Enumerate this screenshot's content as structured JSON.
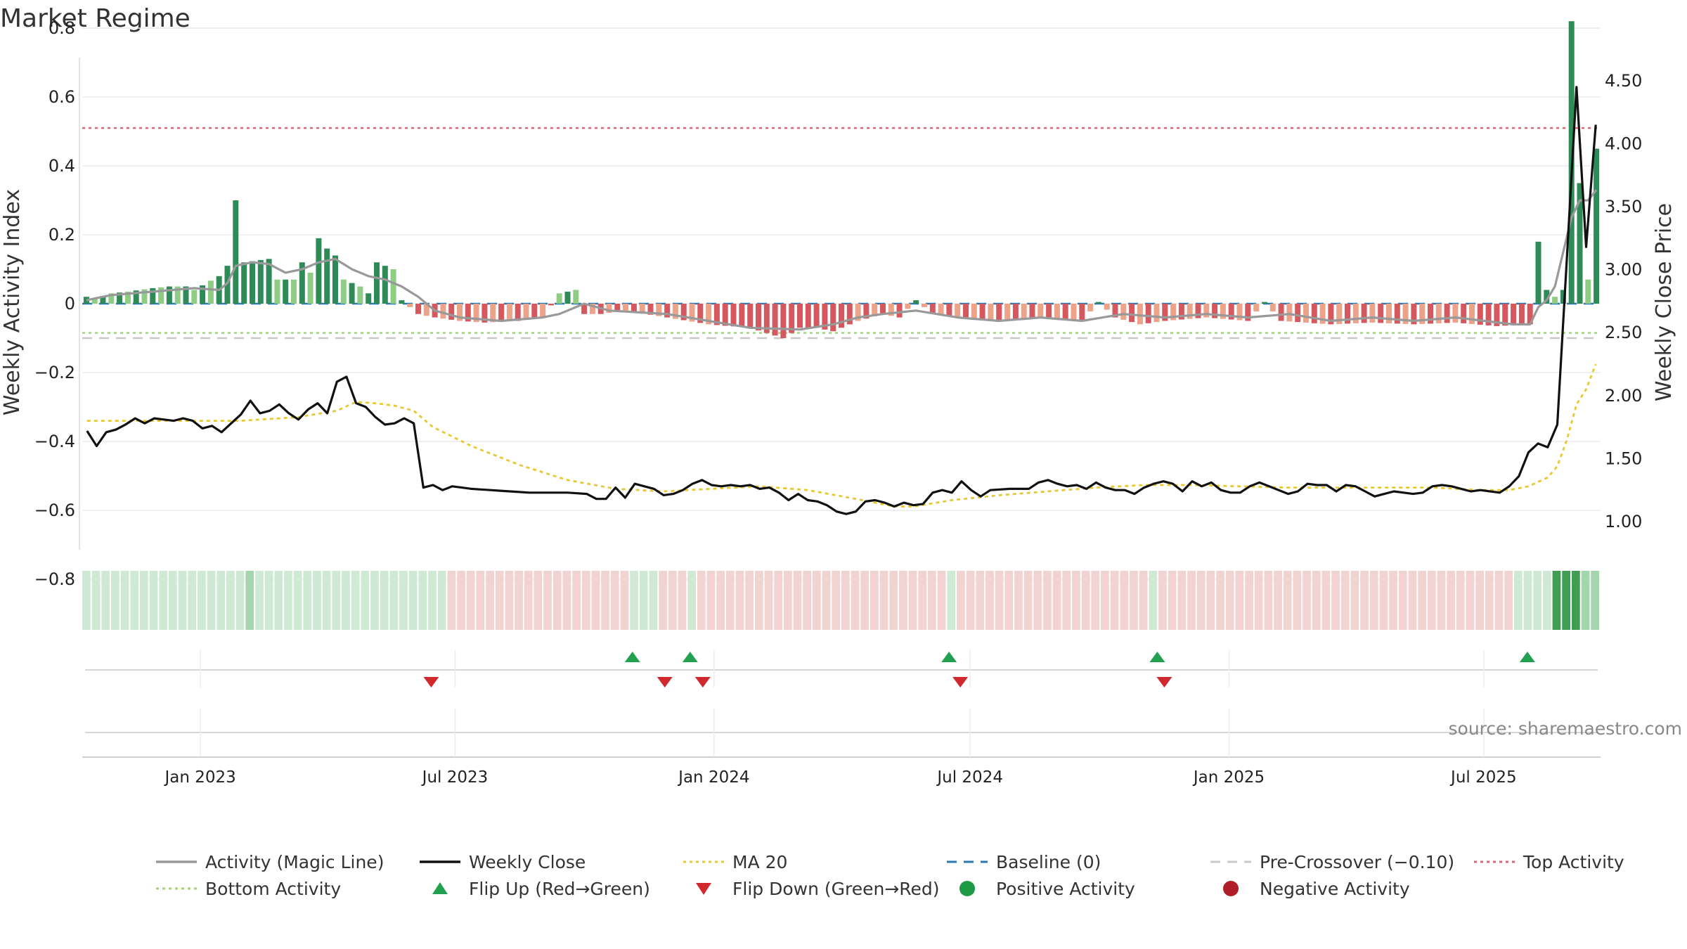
{
  "title": "Market Regime",
  "source": "source: sharemaestro.com",
  "chart_data": {
    "type": "bar",
    "x_start": "2022-10-09",
    "x_end": "2025-09-22",
    "date_ticks": [
      {
        "date": "2023-01-01",
        "label": "Jan 2023"
      },
      {
        "date": "2023-07-01",
        "label": "Jul 2023"
      },
      {
        "date": "2024-01-01",
        "label": "Jan 2024"
      },
      {
        "date": "2024-07-01",
        "label": "Jul 2024"
      },
      {
        "date": "2025-01-01",
        "label": "Jan 2025"
      },
      {
        "date": "2025-07-01",
        "label": "Jul 2025"
      }
    ],
    "left_axis": {
      "label": "Weekly Activity Index",
      "ylim": [
        -0.9,
        0.9
      ],
      "ticks": [
        {
          "v": 0.8,
          "label": "0.8"
        },
        {
          "v": 0.6,
          "label": "0.6"
        },
        {
          "v": 0.4,
          "label": "0.4"
        },
        {
          "v": 0.2,
          "label": "0.2"
        },
        {
          "v": 0,
          "label": "0"
        },
        {
          "v": -0.2,
          "label": "−0.2"
        },
        {
          "v": -0.4,
          "label": "−0.4"
        },
        {
          "v": -0.6,
          "label": "−0.6"
        },
        {
          "v": -0.8,
          "label": "−0.8"
        }
      ]
    },
    "right_axis": {
      "label": "Weekly Close Price",
      "ylim": [
        0.95,
        4.55
      ],
      "ticks": [
        {
          "v": 4.5,
          "label": "4.50"
        },
        {
          "v": 4.0,
          "label": "4.00"
        },
        {
          "v": 3.5,
          "label": "3.50"
        },
        {
          "v": 3.0,
          "label": "3.00"
        },
        {
          "v": 2.5,
          "label": "2.50"
        },
        {
          "v": 2.0,
          "label": "2.00"
        },
        {
          "v": 1.5,
          "label": "1.50"
        },
        {
          "v": 1.0,
          "label": "1.00"
        }
      ]
    },
    "reference_lines": {
      "top_activity": 0.51,
      "bottom_activity": -0.085,
      "pre_crossover": -0.1,
      "baseline": 0
    },
    "activity_anchors": [
      [
        0,
        0.02
      ],
      [
        1,
        0.015
      ],
      [
        3,
        0.03
      ],
      [
        5,
        0.035
      ],
      [
        8,
        0.045
      ],
      [
        10,
        0.05
      ],
      [
        12,
        0.05
      ],
      [
        13,
        0.04
      ],
      [
        16,
        0.08
      ],
      [
        17,
        0.11
      ],
      [
        18,
        0.3
      ],
      [
        19,
        0.12
      ],
      [
        22,
        0.13
      ],
      [
        23,
        0.07
      ],
      [
        25,
        0.07
      ],
      [
        26,
        0.12
      ],
      [
        27,
        0.09
      ],
      [
        28,
        0.19
      ],
      [
        29,
        0.16
      ],
      [
        30,
        0.14
      ],
      [
        31,
        0.07
      ],
      [
        33,
        0.05
      ],
      [
        34,
        0.03
      ],
      [
        35,
        0.12
      ],
      [
        37,
        0.1
      ],
      [
        38,
        0.01
      ],
      [
        40,
        -0.03
      ],
      [
        42,
        -0.04
      ],
      [
        45,
        -0.05
      ],
      [
        48,
        -0.055
      ],
      [
        52,
        -0.05
      ],
      [
        55,
        -0.04
      ],
      [
        57,
        0.03
      ],
      [
        59,
        0.04
      ],
      [
        60,
        -0.03
      ],
      [
        62,
        -0.03
      ],
      [
        65,
        -0.02
      ],
      [
        70,
        -0.04
      ],
      [
        75,
        -0.06
      ],
      [
        80,
        -0.07
      ],
      [
        84,
        -0.1
      ],
      [
        86,
        -0.07
      ],
      [
        88,
        -0.07
      ],
      [
        90,
        -0.08
      ],
      [
        93,
        -0.05
      ],
      [
        96,
        -0.03
      ],
      [
        98,
        -0.04
      ],
      [
        100,
        0.01
      ],
      [
        102,
        -0.03
      ],
      [
        105,
        -0.04
      ],
      [
        110,
        -0.05
      ],
      [
        115,
        -0.04
      ],
      [
        120,
        -0.05
      ],
      [
        122,
        0.005
      ],
      [
        124,
        -0.04
      ],
      [
        127,
        -0.06
      ],
      [
        130,
        -0.05
      ],
      [
        135,
        -0.04
      ],
      [
        140,
        -0.05
      ],
      [
        142,
        0.005
      ],
      [
        144,
        -0.05
      ],
      [
        150,
        -0.06
      ],
      [
        155,
        -0.055
      ],
      [
        160,
        -0.06
      ],
      [
        165,
        -0.055
      ],
      [
        170,
        -0.065
      ],
      [
        174,
        -0.06
      ],
      [
        175,
        0.18
      ],
      [
        176,
        0.04
      ],
      [
        177,
        0.02
      ],
      [
        178,
        0.04
      ],
      [
        179,
        0.82
      ],
      [
        180,
        0.35
      ],
      [
        181,
        0.07
      ],
      [
        182,
        0.45
      ]
    ],
    "activity_line_anchors": [
      [
        0,
        0.01
      ],
      [
        3,
        0.025
      ],
      [
        8,
        0.035
      ],
      [
        13,
        0.045
      ],
      [
        16,
        0.04
      ],
      [
        17,
        0.06
      ],
      [
        18,
        0.11
      ],
      [
        20,
        0.12
      ],
      [
        22,
        0.115
      ],
      [
        24,
        0.09
      ],
      [
        26,
        0.1
      ],
      [
        28,
        0.12
      ],
      [
        30,
        0.13
      ],
      [
        32,
        0.1
      ],
      [
        34,
        0.08
      ],
      [
        36,
        0.07
      ],
      [
        38,
        0.05
      ],
      [
        40,
        0.02
      ],
      [
        42,
        -0.02
      ],
      [
        45,
        -0.04
      ],
      [
        50,
        -0.05
      ],
      [
        55,
        -0.04
      ],
      [
        57,
        -0.03
      ],
      [
        60,
        0.0
      ],
      [
        63,
        -0.02
      ],
      [
        70,
        -0.03
      ],
      [
        75,
        -0.05
      ],
      [
        80,
        -0.07
      ],
      [
        86,
        -0.075
      ],
      [
        90,
        -0.06
      ],
      [
        93,
        -0.04
      ],
      [
        96,
        -0.03
      ],
      [
        100,
        -0.02
      ],
      [
        105,
        -0.04
      ],
      [
        110,
        -0.05
      ],
      [
        115,
        -0.04
      ],
      [
        120,
        -0.05
      ],
      [
        125,
        -0.03
      ],
      [
        130,
        -0.04
      ],
      [
        135,
        -0.03
      ],
      [
        140,
        -0.04
      ],
      [
        145,
        -0.03
      ],
      [
        150,
        -0.05
      ],
      [
        155,
        -0.04
      ],
      [
        160,
        -0.05
      ],
      [
        165,
        -0.04
      ],
      [
        172,
        -0.06
      ],
      [
        174,
        -0.06
      ],
      [
        175,
        -0.01
      ],
      [
        176,
        0.01
      ],
      [
        177,
        0.05
      ],
      [
        178,
        0.15
      ],
      [
        179,
        0.25
      ],
      [
        180,
        0.3
      ],
      [
        181,
        0.3
      ],
      [
        182,
        0.33
      ]
    ],
    "close_anchors": [
      [
        0,
        1.72
      ],
      [
        1,
        1.6
      ],
      [
        2,
        1.71
      ],
      [
        3,
        1.73
      ],
      [
        4,
        1.77
      ],
      [
        5,
        1.82
      ],
      [
        6,
        1.78
      ],
      [
        7,
        1.82
      ],
      [
        8,
        1.81
      ],
      [
        9,
        1.8
      ],
      [
        10,
        1.82
      ],
      [
        11,
        1.8
      ],
      [
        12,
        1.74
      ],
      [
        13,
        1.76
      ],
      [
        14,
        1.71
      ],
      [
        15,
        1.78
      ],
      [
        16,
        1.85
      ],
      [
        17,
        1.96
      ],
      [
        18,
        1.86
      ],
      [
        19,
        1.88
      ],
      [
        20,
        1.93
      ],
      [
        21,
        1.86
      ],
      [
        22,
        1.81
      ],
      [
        23,
        1.89
      ],
      [
        24,
        1.94
      ],
      [
        25,
        1.86
      ],
      [
        26,
        2.11
      ],
      [
        27,
        2.15
      ],
      [
        28,
        1.94
      ],
      [
        29,
        1.91
      ],
      [
        30,
        1.83
      ],
      [
        31,
        1.77
      ],
      [
        32,
        1.78
      ],
      [
        33,
        1.82
      ],
      [
        34,
        1.78
      ],
      [
        35,
        1.27
      ],
      [
        36,
        1.29
      ],
      [
        37,
        1.25
      ],
      [
        38,
        1.28
      ],
      [
        40,
        1.26
      ],
      [
        42,
        1.25
      ],
      [
        44,
        1.24
      ],
      [
        46,
        1.23
      ],
      [
        48,
        1.23
      ],
      [
        50,
        1.23
      ],
      [
        52,
        1.22
      ],
      [
        53,
        1.18
      ],
      [
        54,
        1.18
      ],
      [
        55,
        1.27
      ],
      [
        56,
        1.19
      ],
      [
        57,
        1.3
      ],
      [
        58,
        1.28
      ],
      [
        59,
        1.26
      ],
      [
        60,
        1.21
      ],
      [
        61,
        1.22
      ],
      [
        62,
        1.25
      ],
      [
        63,
        1.3
      ],
      [
        64,
        1.33
      ],
      [
        65,
        1.29
      ],
      [
        66,
        1.28
      ],
      [
        67,
        1.29
      ],
      [
        68,
        1.28
      ],
      [
        69,
        1.29
      ],
      [
        70,
        1.26
      ],
      [
        71,
        1.27
      ],
      [
        72,
        1.23
      ],
      [
        73,
        1.17
      ],
      [
        74,
        1.22
      ],
      [
        75,
        1.17
      ],
      [
        76,
        1.16
      ],
      [
        77,
        1.13
      ],
      [
        78,
        1.08
      ],
      [
        79,
        1.06
      ],
      [
        80,
        1.08
      ],
      [
        81,
        1.16
      ],
      [
        82,
        1.17
      ],
      [
        83,
        1.15
      ],
      [
        84,
        1.12
      ],
      [
        85,
        1.15
      ],
      [
        86,
        1.13
      ],
      [
        87,
        1.14
      ],
      [
        88,
        1.23
      ],
      [
        89,
        1.25
      ],
      [
        90,
        1.23
      ],
      [
        91,
        1.32
      ],
      [
        92,
        1.25
      ],
      [
        93,
        1.2
      ],
      [
        94,
        1.25
      ],
      [
        96,
        1.26
      ],
      [
        98,
        1.26
      ],
      [
        99,
        1.31
      ],
      [
        100,
        1.33
      ],
      [
        101,
        1.3
      ],
      [
        102,
        1.28
      ],
      [
        103,
        1.29
      ],
      [
        104,
        1.26
      ],
      [
        105,
        1.31
      ],
      [
        106,
        1.27
      ],
      [
        107,
        1.25
      ],
      [
        108,
        1.25
      ],
      [
        109,
        1.22
      ],
      [
        110,
        1.27
      ],
      [
        111,
        1.3
      ],
      [
        112,
        1.32
      ],
      [
        113,
        1.3
      ],
      [
        114,
        1.24
      ],
      [
        115,
        1.32
      ],
      [
        116,
        1.28
      ],
      [
        117,
        1.31
      ],
      [
        118,
        1.25
      ],
      [
        119,
        1.23
      ],
      [
        120,
        1.23
      ],
      [
        121,
        1.28
      ],
      [
        122,
        1.31
      ],
      [
        123,
        1.28
      ],
      [
        124,
        1.25
      ],
      [
        125,
        1.22
      ],
      [
        126,
        1.24
      ],
      [
        127,
        1.3
      ],
      [
        128,
        1.29
      ],
      [
        129,
        1.29
      ],
      [
        130,
        1.24
      ],
      [
        131,
        1.29
      ],
      [
        132,
        1.28
      ],
      [
        133,
        1.24
      ],
      [
        134,
        1.2
      ],
      [
        135,
        1.22
      ],
      [
        136,
        1.24
      ],
      [
        137,
        1.23
      ],
      [
        138,
        1.22
      ],
      [
        139,
        1.23
      ],
      [
        140,
        1.28
      ],
      [
        141,
        1.29
      ],
      [
        142,
        1.28
      ],
      [
        143,
        1.26
      ],
      [
        144,
        1.24
      ],
      [
        145,
        1.25
      ],
      [
        146,
        1.24
      ],
      [
        147,
        1.23
      ],
      [
        148,
        1.28
      ],
      [
        149,
        1.36
      ],
      [
        150,
        1.55
      ],
      [
        151,
        1.62
      ],
      [
        152,
        1.59
      ],
      [
        153,
        1.77
      ],
      [
        154,
        3.1
      ],
      [
        155,
        4.45
      ],
      [
        156,
        3.18
      ],
      [
        157,
        4.15
      ]
    ],
    "ma20_anchors": [
      [
        0,
        1.8
      ],
      [
        16,
        1.8
      ],
      [
        22,
        1.83
      ],
      [
        26,
        1.88
      ],
      [
        28,
        1.95
      ],
      [
        30,
        1.94
      ],
      [
        32,
        1.92
      ],
      [
        34,
        1.88
      ],
      [
        36,
        1.75
      ],
      [
        40,
        1.6
      ],
      [
        45,
        1.45
      ],
      [
        50,
        1.33
      ],
      [
        55,
        1.26
      ],
      [
        60,
        1.24
      ],
      [
        65,
        1.26
      ],
      [
        70,
        1.28
      ],
      [
        75,
        1.25
      ],
      [
        80,
        1.18
      ],
      [
        84,
        1.12
      ],
      [
        86,
        1.12
      ],
      [
        90,
        1.17
      ],
      [
        95,
        1.21
      ],
      [
        100,
        1.24
      ],
      [
        105,
        1.27
      ],
      [
        110,
        1.29
      ],
      [
        115,
        1.29
      ],
      [
        120,
        1.28
      ],
      [
        125,
        1.27
      ],
      [
        130,
        1.27
      ],
      [
        135,
        1.27
      ],
      [
        140,
        1.27
      ],
      [
        145,
        1.25
      ],
      [
        148,
        1.25
      ],
      [
        150,
        1.28
      ],
      [
        152,
        1.35
      ],
      [
        153,
        1.44
      ],
      [
        154,
        1.65
      ],
      [
        155,
        1.93
      ],
      [
        156,
        2.05
      ],
      [
        157,
        2.25
      ]
    ],
    "regime_segments": [
      [
        0,
        17,
        "lg"
      ],
      [
        17,
        18,
        "mg"
      ],
      [
        18,
        38,
        "lg"
      ],
      [
        38,
        57,
        "lr"
      ],
      [
        57,
        60,
        "lg"
      ],
      [
        60,
        63,
        "lr"
      ],
      [
        63,
        64,
        "lg"
      ],
      [
        64,
        90,
        "lr"
      ],
      [
        90,
        91,
        "lg"
      ],
      [
        91,
        111,
        "lr"
      ],
      [
        111,
        112,
        "lg"
      ],
      [
        112,
        149,
        "lr"
      ],
      [
        149,
        153,
        "lg"
      ],
      [
        153,
        156,
        "dg"
      ],
      [
        156,
        158,
        "mg"
      ]
    ],
    "flip_up": [
      "2023-11-04",
      "2023-12-15",
      "2024-06-16",
      "2024-11-11",
      "2025-08-01"
    ],
    "flip_down": [
      "2023-06-14",
      "2023-11-27",
      "2023-12-24",
      "2024-06-24",
      "2024-11-16"
    ],
    "legend": [
      {
        "label": "Activity (Magic Line)",
        "style": "solid",
        "color": "#999999"
      },
      {
        "label": "Weekly Close",
        "style": "solid",
        "color": "#111111"
      },
      {
        "label": "MA 20",
        "style": "dotted",
        "color": "#e8c832"
      },
      {
        "label": "Baseline (0)",
        "style": "dashed",
        "color": "#2a7ab0"
      },
      {
        "label": "Pre-Crossover (−0.10)",
        "style": "dashed",
        "color": "#c8c8c8"
      },
      {
        "label": "Top Activity",
        "style": "dotted",
        "color": "#e06478"
      },
      {
        "label": "Bottom Activity",
        "style": "dotted",
        "color": "#9ed67a"
      },
      {
        "label": "Flip Up (Red→Green)",
        "style": "tri-up",
        "color": "#22a050"
      },
      {
        "label": "Flip Down (Green→Red)",
        "style": "tri-down",
        "color": "#d0282c"
      },
      {
        "label": "Positive Activity",
        "style": "dot",
        "color": "#1e9a46"
      },
      {
        "label": "Negative Activity",
        "style": "dot",
        "color": "#b01e28"
      }
    ],
    "colors": {
      "pos_strong": "#2e8b57",
      "pos_weak": "#8fcc84",
      "neg_strong": "#d4585e",
      "neg_weak": "#eda389",
      "regime_lg": "#cfe9d4",
      "regime_mg": "#a3d6ad",
      "regime_dg": "#3f9d54",
      "regime_lr": "#f1d3d1",
      "grid": "#ececec"
    }
  }
}
